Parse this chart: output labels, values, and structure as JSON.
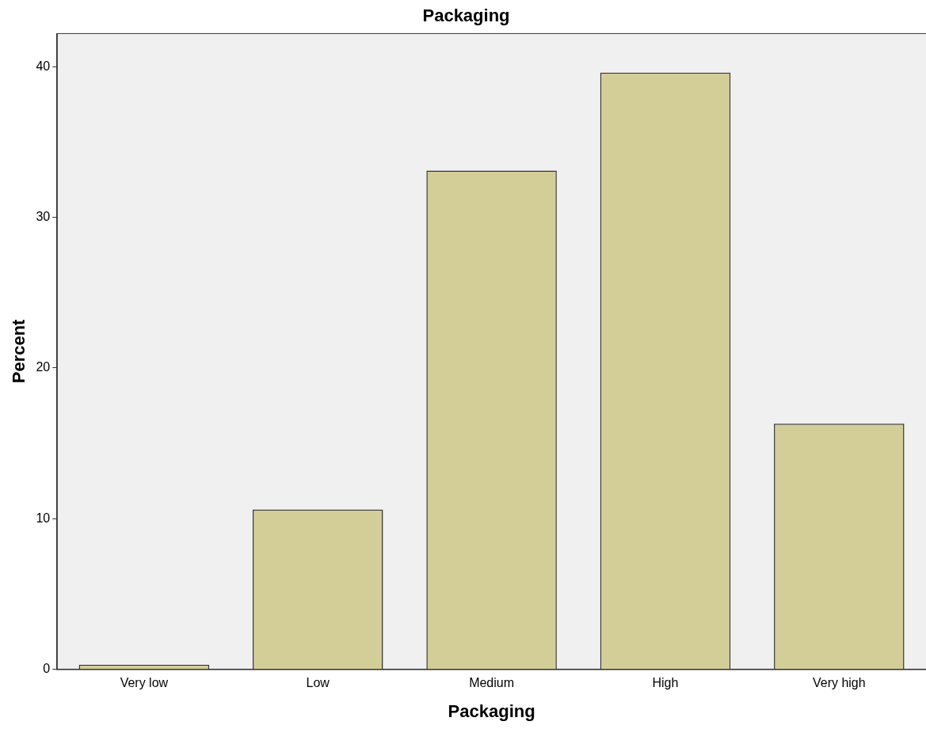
{
  "chart_data": {
    "type": "bar",
    "title": "Packaging",
    "xlabel": "Packaging",
    "ylabel": "Percent",
    "categories": [
      "Very low",
      "Low",
      "Medium",
      "High",
      "Very high"
    ],
    "series": [
      {
        "color": "#d3ce97",
        "values": [
          0.3,
          10.6,
          33.1,
          39.6,
          16.3
        ]
      }
    ],
    "ylim": [
      0,
      42.2
    ],
    "yticks": [
      0,
      10,
      20,
      30,
      40
    ],
    "grid": false,
    "legend": false
  }
}
